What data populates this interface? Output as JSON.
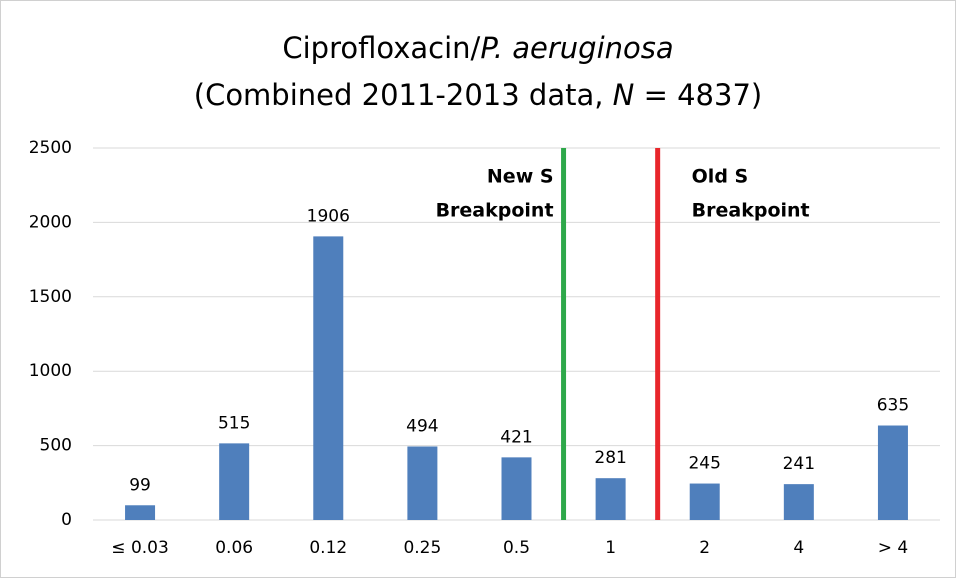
{
  "chart_data": {
    "type": "bar",
    "title": [
      "Ciprofloxacin/",
      "P. aeruginosa"
    ],
    "subtitle": [
      "(Combined 2011-2013 data, ",
      "N",
      " = 4837)"
    ],
    "categories": [
      "≤ 0.03",
      "0.06",
      "0.12",
      "0.25",
      "0.5",
      "1",
      "2",
      "4",
      "> 4"
    ],
    "values": [
      99,
      515,
      1906,
      494,
      421,
      281,
      245,
      241,
      635
    ],
    "color": "#4f7fbc",
    "ylim": [
      0,
      2500
    ],
    "yticks": [
      0,
      500,
      1000,
      1500,
      2000,
      2500
    ],
    "grid": true,
    "annotations": [
      {
        "text": [
          "New S",
          "Breakpoint"
        ],
        "color": "#2ea84a"
      },
      {
        "text": [
          "Old S",
          "Breakpoint"
        ],
        "color": "#e8262b"
      }
    ]
  }
}
